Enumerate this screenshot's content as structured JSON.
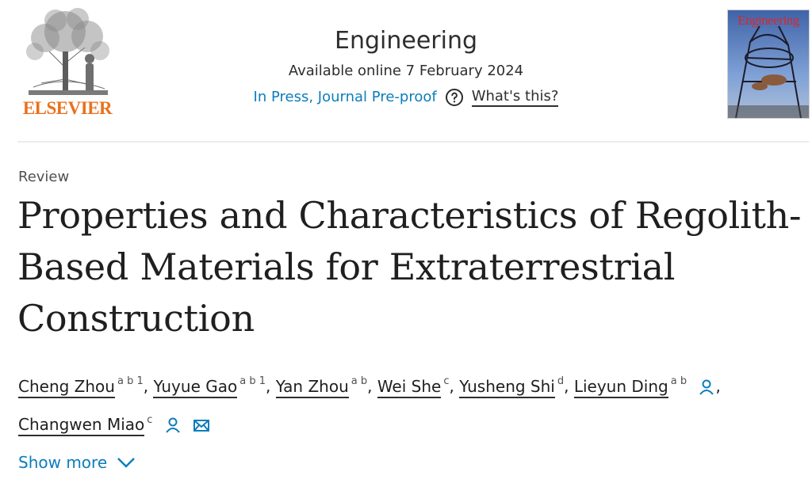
{
  "header": {
    "publisher": "ELSEVIER",
    "journal": "Engineering",
    "available_online": "Available online 7 February 2024",
    "status_link": "In Press, Journal Pre-proof",
    "whats_this": "What's this?",
    "cover_title": "Engineering"
  },
  "article": {
    "type": "Review",
    "title": "Properties and Characteristics of Regolith-Based Materials for Extraterrestrial Construction",
    "authors": [
      {
        "name": "Cheng Zhou",
        "sup": "a b 1"
      },
      {
        "name": "Yuyue Gao",
        "sup": "a b 1"
      },
      {
        "name": "Yan Zhou",
        "sup": "a b"
      },
      {
        "name": "Wei She",
        "sup": "c"
      },
      {
        "name": "Yusheng Shi",
        "sup": "d"
      },
      {
        "name": "Lieyun Ding",
        "sup": "a b"
      },
      {
        "name": "Changwen Miao",
        "sup": "c"
      }
    ],
    "show_more": "Show more"
  },
  "colors": {
    "link_blue": "#0c7dbb",
    "elsevier_orange": "#e9711c",
    "cover_red": "#d9262c"
  },
  "icons": [
    "help-circle-icon",
    "person-icon",
    "envelope-icon",
    "chevron-down-icon"
  ]
}
